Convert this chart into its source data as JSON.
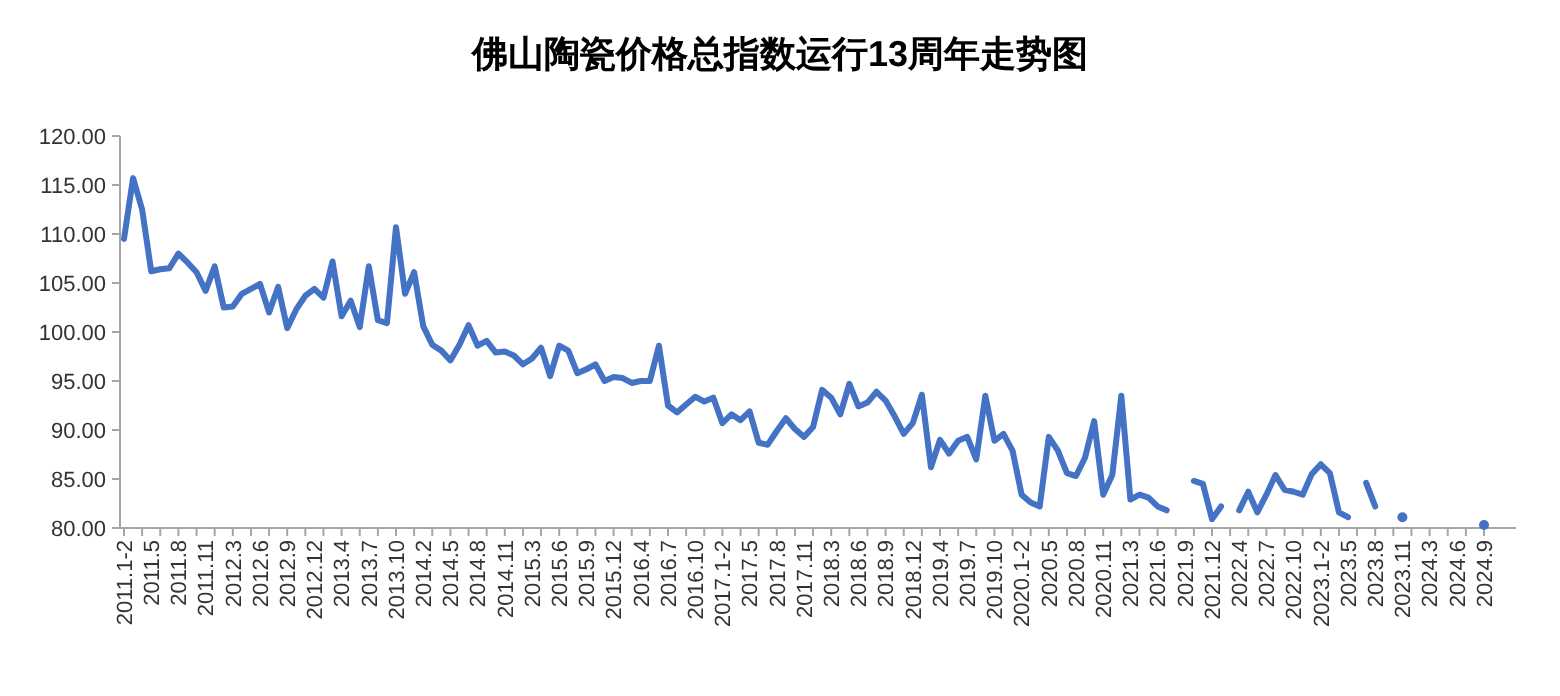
{
  "chart_data": {
    "type": "line",
    "title": "佛山陶瓷价格总指数运行13周年走势图",
    "categories": [
      "2011.1-2",
      null,
      null,
      "2011.5",
      null,
      null,
      "2011.8",
      null,
      null,
      "2011.11",
      null,
      null,
      "2012.3",
      null,
      null,
      "2012.6",
      null,
      null,
      "2012.9",
      null,
      null,
      "2012.12",
      null,
      null,
      "2013.4",
      null,
      null,
      "2013.7",
      null,
      null,
      "2013.10",
      null,
      null,
      "2014.2",
      null,
      null,
      "2014.5",
      null,
      null,
      "2014.8",
      null,
      null,
      "2014.11",
      null,
      null,
      "2015.3",
      null,
      null,
      "2015.6",
      null,
      null,
      "2015.9",
      null,
      null,
      "2015.12",
      null,
      null,
      "2016.4",
      null,
      null,
      "2016.7",
      null,
      null,
      "2016.10",
      null,
      null,
      "2017.1-2",
      null,
      null,
      "2017.5",
      null,
      null,
      "2017.8",
      null,
      null,
      "2017.11",
      null,
      null,
      "2018.3",
      null,
      null,
      "2018.6",
      null,
      null,
      "2018.9",
      null,
      null,
      "2018.12",
      null,
      null,
      "2019.4",
      null,
      null,
      "2019.7",
      null,
      null,
      "2019.10",
      null,
      null,
      "2020.1-2",
      null,
      null,
      "2020.5",
      null,
      null,
      "2020.8",
      null,
      null,
      "2020.11",
      null,
      null,
      "2021.3",
      null,
      null,
      "2021.6",
      null,
      null,
      "2021.9",
      null,
      null,
      "2021.12",
      null,
      null,
      "2022.4",
      null,
      null,
      "2022.7",
      null,
      null,
      "2022.10",
      null,
      null,
      "2023.1-2",
      null,
      null,
      "2023.5",
      null,
      null,
      "2023.8",
      null,
      null,
      "2023.11",
      null,
      null,
      "2024.3",
      null,
      null,
      "2024.6",
      null,
      null,
      "2024.9"
    ],
    "series": [
      {
        "color": "#4472c4",
        "values": [
          109.5,
          115.7,
          112.5,
          106.2,
          106.4,
          106.5,
          108.0,
          107.1,
          106.1,
          104.2,
          106.7,
          102.5,
          102.6,
          103.9,
          104.4,
          104.9,
          102.0,
          104.6,
          100.4,
          102.3,
          103.7,
          104.4,
          103.5,
          107.2,
          101.6,
          103.2,
          100.5,
          106.7,
          101.2,
          100.9,
          110.7,
          103.9,
          106.1,
          100.6,
          98.7,
          98.1,
          97.1,
          98.7,
          100.7,
          98.6,
          99.1,
          97.9,
          98.0,
          97.6,
          96.7,
          97.3,
          98.4,
          95.5,
          98.6,
          98.1,
          95.8,
          96.2,
          96.7,
          95.0,
          95.4,
          95.3,
          94.8,
          95.0,
          95.0,
          98.6,
          92.5,
          91.8,
          92.6,
          93.4,
          92.9,
          93.3,
          90.7,
          91.6,
          91.0,
          91.9,
          88.7,
          88.5,
          89.9,
          91.2,
          90.1,
          89.3,
          90.3,
          94.1,
          93.3,
          91.6,
          94.7,
          92.4,
          92.8,
          93.9,
          93.0,
          91.4,
          89.6,
          90.7,
          93.6,
          86.2,
          89.0,
          87.6,
          88.9,
          89.3,
          87.0,
          93.5,
          88.9,
          89.6,
          87.9,
          83.4,
          82.6,
          82.2,
          89.3,
          87.9,
          85.6,
          85.3,
          87.2,
          90.9,
          83.4,
          85.4,
          93.5,
          82.9,
          83.4,
          83.1,
          82.2,
          81.8,
          null,
          null,
          84.8,
          84.5,
          80.9,
          82.2,
          null,
          81.8,
          83.7,
          81.6,
          83.4,
          85.4,
          83.9,
          83.7,
          83.4,
          85.5,
          86.5,
          85.6,
          81.6,
          81.1,
          null,
          84.6,
          82.2,
          null,
          null,
          81.1,
          null,
          null,
          null,
          null,
          null,
          null,
          null,
          null,
          80.3
        ]
      }
    ],
    "ylim": [
      80,
      120
    ],
    "yticks": [
      {
        "value": 80,
        "label": "80.00"
      },
      {
        "value": 85,
        "label": "85.00"
      },
      {
        "value": 90,
        "label": "90.00"
      },
      {
        "value": 95,
        "label": "95.00"
      },
      {
        "value": 100,
        "label": "100.00"
      },
      {
        "value": 105,
        "label": "105.00"
      },
      {
        "value": 110,
        "label": "110.00"
      },
      {
        "value": 115,
        "label": "115.00"
      },
      {
        "value": 120,
        "label": "120.00"
      }
    ],
    "line_style": "solid",
    "marker": "none"
  }
}
